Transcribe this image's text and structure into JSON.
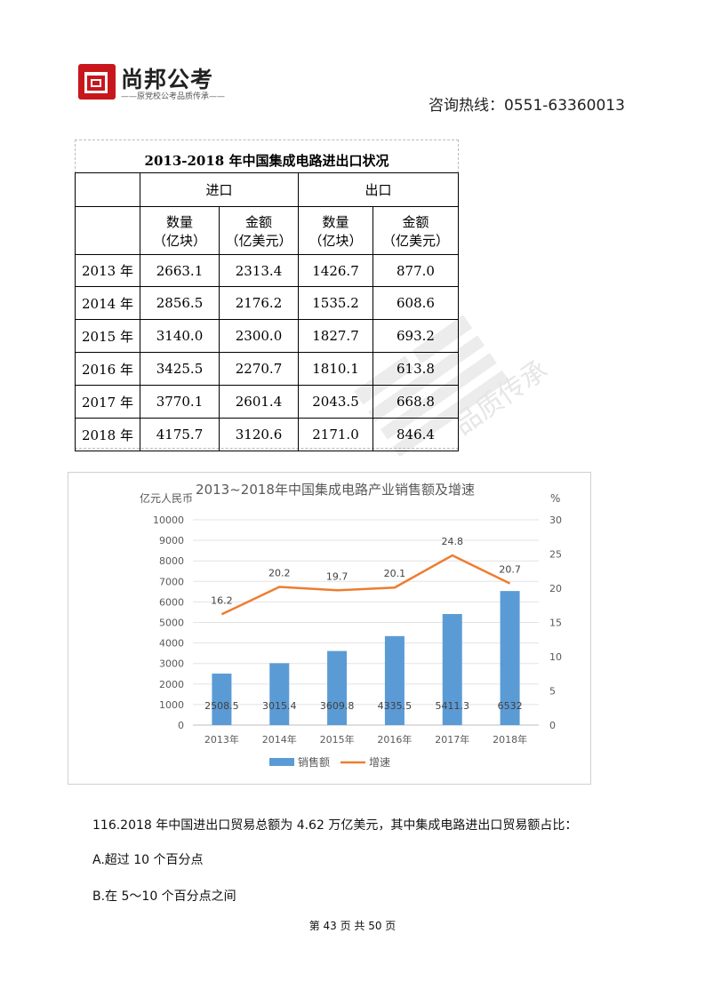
{
  "header": {
    "logo_name": "尚邦公考",
    "logo_slogan": "——原党校公考品质传承——",
    "hotline": "咨询热线：0551-63360013"
  },
  "table": {
    "title": "2013-2018 年中国集成电路进出口状况",
    "group_import": "进口",
    "group_export": "出口",
    "col_qty": [
      "数量",
      "（亿块）"
    ],
    "col_amt": [
      "金额",
      "（亿美元）"
    ],
    "rows": [
      {
        "year": "2013 年",
        "imp_qty": "2663.1",
        "imp_amt": "2313.4",
        "exp_qty": "1426.7",
        "exp_amt": "877.0"
      },
      {
        "year": "2014 年",
        "imp_qty": "2856.5",
        "imp_amt": "2176.2",
        "exp_qty": "1535.2",
        "exp_amt": "608.6"
      },
      {
        "year": "2015 年",
        "imp_qty": "3140.0",
        "imp_amt": "2300.0",
        "exp_qty": "1827.7",
        "exp_amt": "693.2"
      },
      {
        "year": "2016 年",
        "imp_qty": "3425.5",
        "imp_amt": "2270.7",
        "exp_qty": "1810.1",
        "exp_amt": "613.8"
      },
      {
        "year": "2017 年",
        "imp_qty": "3770.1",
        "imp_amt": "2601.4",
        "exp_qty": "2043.5",
        "exp_amt": "668.8"
      },
      {
        "year": "2018 年",
        "imp_qty": "4175.7",
        "imp_amt": "3120.6",
        "exp_qty": "2171.0",
        "exp_amt": "846.4"
      }
    ]
  },
  "watermark_text": "品质传承",
  "chart_data": {
    "type": "bar",
    "title": "2013~2018年中国集成电路产业销售额及增速",
    "ylabel": "亿元人民币",
    "y2label": "%",
    "categories": [
      "2013年",
      "2014年",
      "2015年",
      "2016年",
      "2017年",
      "2018年"
    ],
    "ylim": [
      0,
      10000
    ],
    "yticks": [
      0,
      1000,
      2000,
      3000,
      4000,
      5000,
      6000,
      7000,
      8000,
      9000,
      10000
    ],
    "y2lim": [
      0,
      30
    ],
    "y2ticks": [
      0,
      5,
      10,
      15,
      20,
      25,
      30
    ],
    "series": [
      {
        "name": "销售额",
        "type": "bar",
        "axis": "left",
        "color": "#5b9bd5",
        "values": [
          2508.5,
          3015.4,
          3609.8,
          4335.5,
          5411.3,
          6532
        ],
        "labels": [
          "2508.5",
          "3015.4",
          "3609.8",
          "4335.5",
          "5411.3",
          "6532"
        ]
      },
      {
        "name": "增速",
        "type": "line",
        "axis": "right",
        "color": "#ed7d31",
        "values": [
          16.2,
          20.2,
          19.7,
          20.1,
          24.8,
          20.7
        ],
        "labels": [
          "16.2",
          "20.2",
          "19.7",
          "20.1",
          "24.8",
          "20.7"
        ]
      }
    ],
    "grid": true,
    "legend": "bottom-center"
  },
  "question": {
    "stem": "116.2018 年中国进出口贸易总额为 4.62 万亿美元，其中集成电路进出口贸易额占比：",
    "option_a": "A.超过 10 个百分点",
    "option_b": "B.在 5～10 个百分点之间"
  },
  "footer": {
    "page": "第 43 页 共 50 页"
  }
}
